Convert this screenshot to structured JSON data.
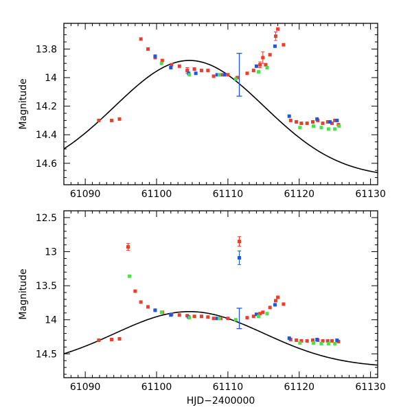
{
  "chart_data": [
    {
      "type": "scatter",
      "title": "",
      "xlabel": "",
      "ylabel": "Magnitude",
      "xlim": [
        61087,
        61131
      ],
      "ylim": [
        14.75,
        13.62
      ],
      "y_inverted": true,
      "xticks": [
        61090,
        61100,
        61110,
        61120,
        61130
      ],
      "xtick_labels": [
        "61090",
        "61100",
        "61110",
        "61120",
        "61130"
      ],
      "yticks": [
        13.8,
        14.0,
        14.2,
        14.4,
        14.6
      ],
      "ytick_labels": [
        "13.8",
        "14",
        "14.2",
        "14.4",
        "14.6"
      ],
      "model_curve": {
        "name": "model",
        "color": "#000000",
        "peak_x": 61104.6,
        "peak_mag": 13.88,
        "baseline_mag": 14.7,
        "sigma": 10.5,
        "x_range": [
          61087,
          61131
        ]
      },
      "series": [
        {
          "name": "red",
          "color": "#f03c28",
          "points": [
            [
              61091.9,
              14.3
            ],
            [
              61093.7,
              14.3
            ],
            [
              61094.8,
              14.29
            ],
            [
              61097.8,
              13.73
            ],
            [
              61098.8,
              13.8
            ],
            [
              61099.8,
              13.86
            ],
            [
              61100.8,
              13.88
            ],
            [
              61102.1,
              13.91
            ],
            [
              61103.2,
              13.92
            ],
            [
              61104.3,
              13.95
            ],
            [
              61105.3,
              13.94
            ],
            [
              61106.3,
              13.95
            ],
            [
              61107.2,
              13.95
            ],
            [
              61108.0,
              13.99
            ],
            [
              61109.0,
              13.98
            ],
            [
              61110.0,
              13.98
            ],
            [
              61111.3,
              14.0
            ],
            [
              61112.7,
              13.97
            ],
            [
              61113.6,
              13.95
            ],
            [
              61114.5,
              13.91
            ],
            [
              61114.9,
              13.86
            ],
            [
              61115.3,
              13.91
            ],
            [
              61115.9,
              13.84
            ],
            [
              61116.7,
              13.71
            ],
            [
              61117.0,
              13.66
            ],
            [
              61117.8,
              13.77
            ],
            [
              61118.8,
              14.3
            ],
            [
              61119.6,
              14.31
            ],
            [
              61120.3,
              14.32
            ],
            [
              61121.1,
              14.32
            ],
            [
              61121.9,
              14.31
            ],
            [
              61122.6,
              14.3
            ],
            [
              61123.3,
              14.32
            ],
            [
              61124.0,
              14.31
            ],
            [
              61124.6,
              14.32
            ],
            [
              61125.0,
              14.3
            ],
            [
              61125.5,
              14.33
            ]
          ],
          "errors": [
            0.0,
            0.0,
            0.0,
            0.0,
            0.0,
            0.0,
            0.0,
            0.0,
            0.0,
            0.02,
            0.0,
            0.0,
            0.0,
            0.0,
            0.0,
            0.0,
            0.0,
            0.0,
            0.0,
            0.02,
            0.04,
            0.0,
            0.0,
            0.03,
            0.0,
            0.0,
            0.0,
            0.0,
            0.0,
            0.0,
            0.0,
            0.0,
            0.0,
            0.0,
            0.0,
            0.0,
            0.0
          ]
        },
        {
          "name": "blue",
          "color": "#1d56e0",
          "points": [
            [
              61099.8,
              13.85
            ],
            [
              61102.0,
              13.93
            ],
            [
              61104.5,
              13.97
            ],
            [
              61105.5,
              13.97
            ],
            [
              61108.5,
              13.98
            ],
            [
              61109.5,
              13.98
            ],
            [
              61114.0,
              13.92
            ],
            [
              61116.6,
              13.78
            ],
            [
              61118.6,
              14.27
            ],
            [
              61122.5,
              14.29
            ],
            [
              61124.3,
              14.31
            ],
            [
              61125.3,
              14.3
            ]
          ],
          "errors": [
            0,
            0,
            0,
            0,
            0,
            0,
            0,
            0,
            0,
            0,
            0,
            0
          ]
        },
        {
          "name": "green",
          "color": "#4be04a",
          "points": [
            [
              61100.7,
              13.9
            ],
            [
              61104.6,
              13.98
            ],
            [
              61108.8,
              13.98
            ],
            [
              61111.1,
              14.01
            ],
            [
              61114.3,
              13.96
            ],
            [
              61115.5,
              13.93
            ],
            [
              61120.1,
              14.35
            ],
            [
              61122.0,
              14.34
            ],
            [
              61123.1,
              14.35
            ],
            [
              61124.1,
              14.36
            ],
            [
              61125.0,
              14.36
            ],
            [
              61125.6,
              14.34
            ]
          ],
          "errors": [
            0,
            0,
            0,
            0,
            0,
            0,
            0,
            0,
            0,
            0,
            0,
            0
          ]
        }
      ],
      "representative_error": {
        "x": 61111.6,
        "y": 13.98,
        "err": 0.15,
        "color": "#1d56e0"
      }
    },
    {
      "type": "scatter",
      "title": "",
      "xlabel": "HJD−2400000",
      "ylabel": "Magnitude",
      "xlim": [
        61087,
        61131
      ],
      "ylim": [
        14.85,
        12.4
      ],
      "y_inverted": true,
      "xticks": [
        61090,
        61100,
        61110,
        61120,
        61130
      ],
      "xtick_labels": [
        "61090",
        "61100",
        "61110",
        "61120",
        "61130"
      ],
      "yticks": [
        12.5,
        13.0,
        13.5,
        14.0,
        14.5
      ],
      "ytick_labels": [
        "12.5",
        "13",
        "13.5",
        "14",
        "14.5"
      ],
      "model_curve": {
        "name": "model",
        "color": "#000000",
        "peak_x": 61104.6,
        "peak_mag": 13.88,
        "baseline_mag": 14.7,
        "sigma": 10.5,
        "x_range": [
          61087,
          61131
        ]
      },
      "series": [
        {
          "name": "red",
          "color": "#f03c28",
          "points": [
            [
              61091.9,
              14.3
            ],
            [
              61093.7,
              14.29
            ],
            [
              61094.8,
              14.28
            ],
            [
              61096.0,
              12.93
            ],
            [
              61097.0,
              13.58
            ],
            [
              61097.8,
              13.74
            ],
            [
              61098.8,
              13.81
            ],
            [
              61099.8,
              13.86
            ],
            [
              61100.8,
              13.89
            ],
            [
              61102.1,
              13.92
            ],
            [
              61103.2,
              13.93
            ],
            [
              61104.3,
              13.94
            ],
            [
              61105.3,
              13.95
            ],
            [
              61106.3,
              13.95
            ],
            [
              61107.2,
              13.96
            ],
            [
              61108.0,
              13.98
            ],
            [
              61109.0,
              13.98
            ],
            [
              61110.0,
              13.98
            ],
            [
              61111.6,
              12.85
            ],
            [
              61112.7,
              13.97
            ],
            [
              61113.6,
              13.95
            ],
            [
              61114.5,
              13.91
            ],
            [
              61114.9,
              13.89
            ],
            [
              61115.9,
              13.82
            ],
            [
              61116.7,
              13.72
            ],
            [
              61117.0,
              13.67
            ],
            [
              61117.8,
              13.77
            ],
            [
              61118.8,
              14.29
            ],
            [
              61119.6,
              14.3
            ],
            [
              61120.3,
              14.31
            ],
            [
              61121.1,
              14.31
            ],
            [
              61121.9,
              14.3
            ],
            [
              61122.6,
              14.3
            ],
            [
              61123.3,
              14.31
            ],
            [
              61124.0,
              14.31
            ],
            [
              61124.6,
              14.31
            ],
            [
              61125.5,
              14.32
            ]
          ],
          "errors": [
            0,
            0,
            0,
            0.05,
            0,
            0,
            0,
            0,
            0,
            0,
            0,
            0,
            0,
            0,
            0,
            0,
            0,
            0,
            0.07,
            0,
            0,
            0,
            0,
            0,
            0,
            0,
            0,
            0,
            0,
            0,
            0,
            0,
            0,
            0,
            0,
            0,
            0
          ]
        },
        {
          "name": "blue",
          "color": "#1d56e0",
          "points": [
            [
              61099.8,
              13.86
            ],
            [
              61102.0,
              13.93
            ],
            [
              61104.5,
              13.96
            ],
            [
              61108.5,
              13.98
            ],
            [
              61111.6,
              13.09
            ],
            [
              61114.0,
              13.92
            ],
            [
              61116.6,
              13.78
            ],
            [
              61118.6,
              14.27
            ],
            [
              61122.5,
              14.29
            ],
            [
              61125.3,
              14.3
            ]
          ],
          "errors": [
            0,
            0,
            0,
            0,
            0.1,
            0,
            0,
            0,
            0,
            0
          ]
        },
        {
          "name": "green",
          "color": "#4be04a",
          "points": [
            [
              61096.2,
              13.36
            ],
            [
              61100.7,
              13.89
            ],
            [
              61104.6,
              13.97
            ],
            [
              61108.8,
              13.98
            ],
            [
              61111.1,
              14.0
            ],
            [
              61114.3,
              13.95
            ],
            [
              61115.5,
              13.91
            ],
            [
              61120.1,
              14.34
            ],
            [
              61122.0,
              14.34
            ],
            [
              61123.1,
              14.35
            ],
            [
              61124.1,
              14.35
            ],
            [
              61125.0,
              14.35
            ]
          ],
          "errors": [
            0,
            0,
            0,
            0,
            0,
            0,
            0,
            0,
            0,
            0,
            0,
            0
          ]
        }
      ],
      "representative_error": {
        "x": 61111.6,
        "y": 13.98,
        "err": 0.15,
        "color": "#1d56e0"
      }
    }
  ]
}
